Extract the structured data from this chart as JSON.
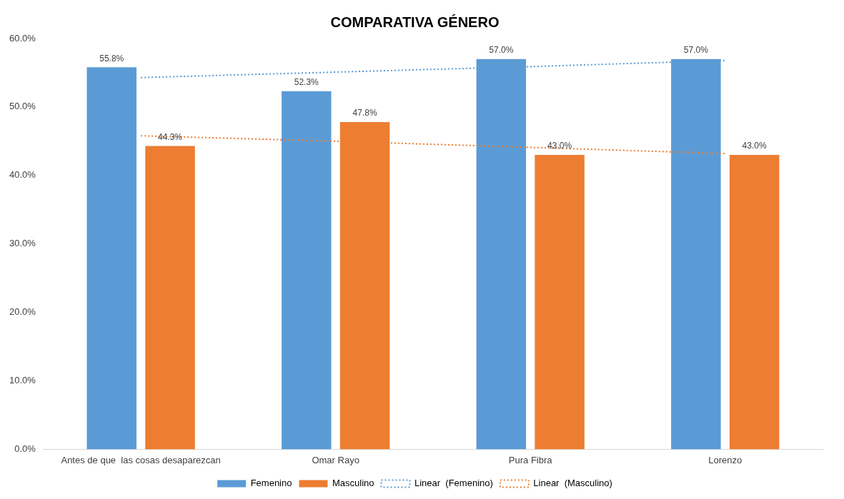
{
  "chart_data": {
    "type": "bar",
    "title": "COMPARATIVA GÉNERO",
    "categories": [
      "Antes de que  las cosas desaparezcan",
      "Omar Rayo",
      "Pura Fibra",
      "Lorenzo"
    ],
    "series": [
      {
        "name": "Femenino",
        "color": "#5b9bd5",
        "values": [
          55.8,
          52.3,
          57.0,
          57.0
        ],
        "value_labels": [
          "55.8%",
          "52.3%",
          "57.0%",
          "57.0%"
        ]
      },
      {
        "name": "Masculino",
        "color": "#ed7d31",
        "values": [
          44.3,
          47.8,
          43.0,
          43.0
        ],
        "value_labels": [
          "44.3%",
          "47.8%",
          "43.0%",
          "43.0%"
        ]
      },
      {
        "name": "Linear  (Femenino)",
        "type": "line",
        "color": "#5b9bd5",
        "line_style": "dotted",
        "marker": "none",
        "values": [
          54.3,
          55.1,
          55.9,
          56.8
        ]
      },
      {
        "name": "Linear  (Masculino)",
        "type": "line",
        "color": "#ed7d31",
        "line_style": "dotted",
        "marker": "none",
        "values": [
          45.8,
          45.0,
          44.1,
          43.2
        ]
      }
    ],
    "ylim": [
      0,
      60
    ],
    "yticks": [
      {
        "value": 0,
        "label": "0.0%"
      },
      {
        "value": 10,
        "label": "10.0%"
      },
      {
        "value": 20,
        "label": "20.0%"
      },
      {
        "value": 30,
        "label": "30.0%"
      },
      {
        "value": 40,
        "label": "40.0%"
      },
      {
        "value": 50,
        "label": "50.0%"
      },
      {
        "value": 60,
        "label": "60.0%"
      }
    ],
    "grid": false,
    "legend": "bottom"
  }
}
